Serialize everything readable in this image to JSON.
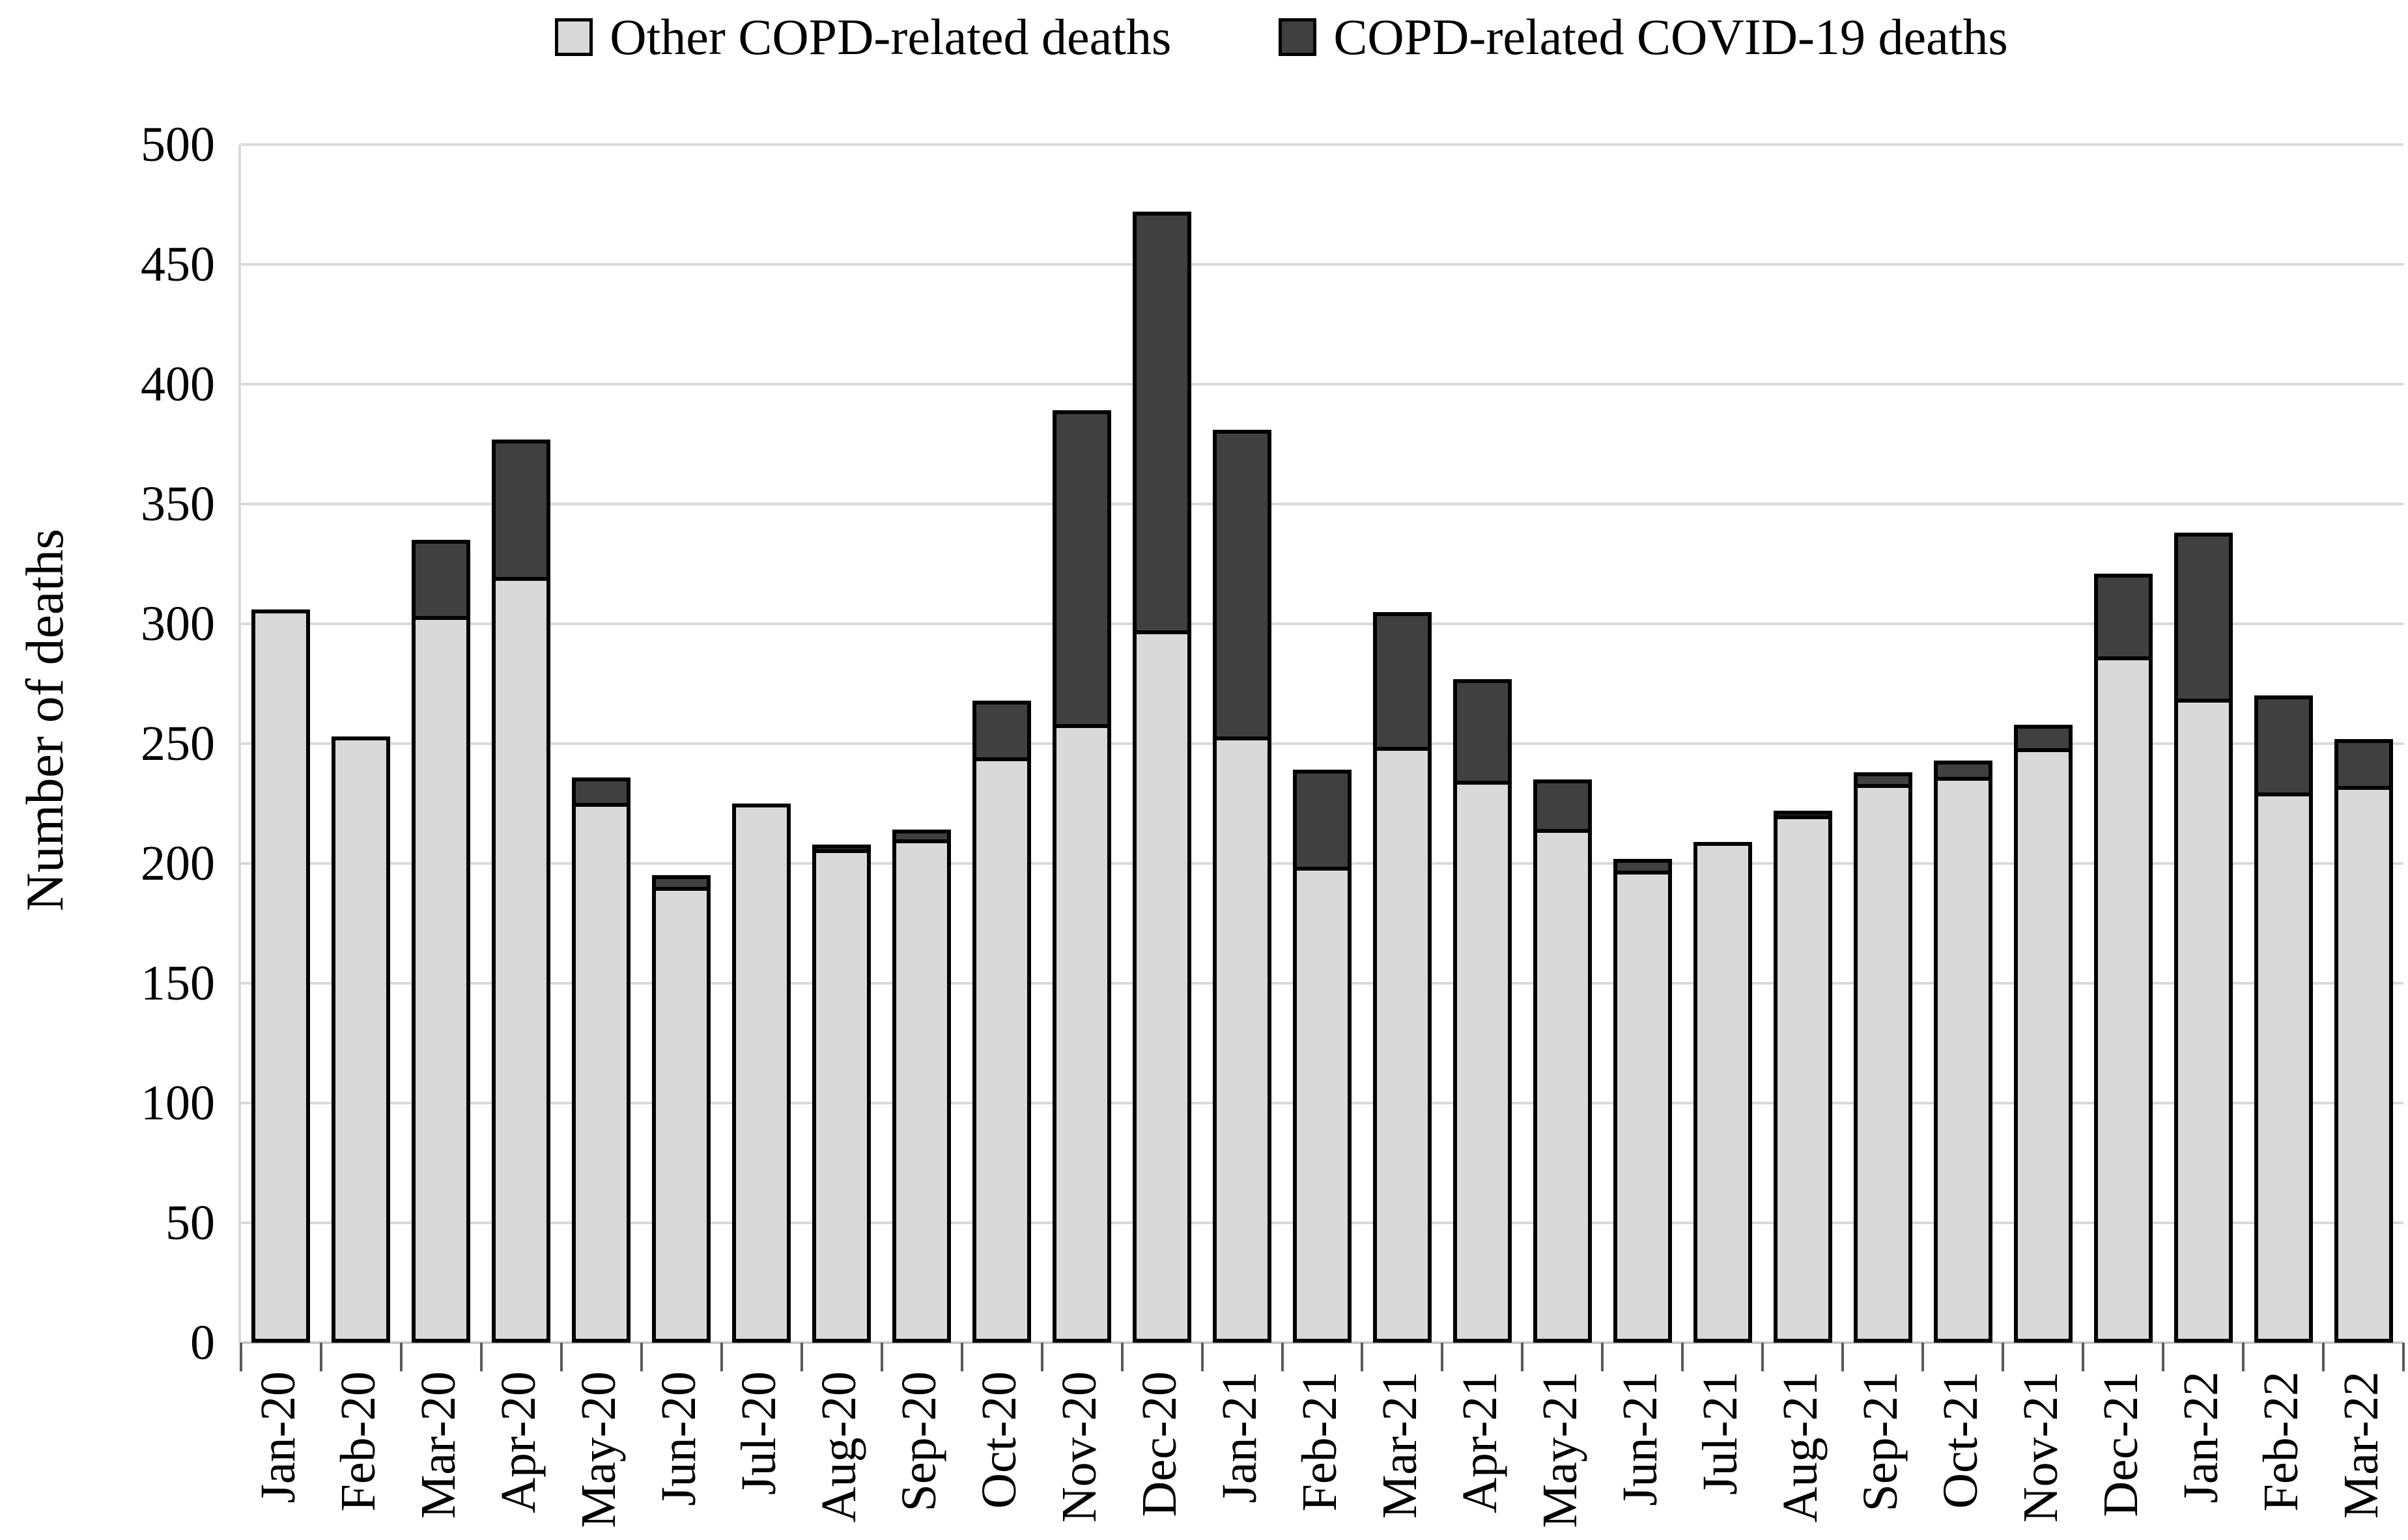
{
  "legend": [
    {
      "label": "Other COPD-related deaths",
      "color": "#d9d9d9",
      "swatch_icon": "legend-swatch-square"
    },
    {
      "label": "COPD-related COVID-19 deaths",
      "color": "#404040",
      "swatch_icon": "legend-swatch-square"
    }
  ],
  "y_axis": {
    "title": "Number of deaths",
    "min": 0,
    "max": 500,
    "step": 50,
    "tick_labels": [
      "0",
      "50",
      "100",
      "150",
      "200",
      "250",
      "300",
      "350",
      "400",
      "450",
      "500"
    ]
  },
  "colors": {
    "other_series": "#d9d9d9",
    "covid_series": "#404040",
    "bar_outline": "#000000",
    "gridline": "#d9d9d9"
  },
  "chart_data": {
    "type": "bar",
    "stacked": true,
    "title": "",
    "xlabel": "",
    "ylabel": "Number of deaths",
    "ylim": [
      0,
      500
    ],
    "grid": true,
    "legend_position": "top",
    "categories": [
      "Jan-20",
      "Feb-20",
      "Mar-20",
      "Apr-20",
      "May-20",
      "Jun-20",
      "Jul-20",
      "Aug-20",
      "Sep-20",
      "Oct-20",
      "Nov-20",
      "Dec-20",
      "Jan-21",
      "Feb-21",
      "Mar-21",
      "Apr-21",
      "May-21",
      "Jun-21",
      "Jul-21",
      "Aug-21",
      "Sep-21",
      "Oct-21",
      "Nov-21",
      "Dec-21",
      "Jan-22",
      "Feb-22",
      "Mar-22"
    ],
    "series": [
      {
        "name": "Other COPD-related deaths",
        "color": "#d9d9d9",
        "values": [
          306,
          253,
          303,
          319,
          225,
          190,
          225,
          206,
          210,
          244,
          257,
          296,
          252,
          198,
          248,
          234,
          214,
          197,
          209,
          220,
          233,
          236,
          248,
          286,
          268,
          229,
          232
        ]
      },
      {
        "name": "COPD-related COVID-19 deaths",
        "color": "#404040",
        "values": [
          0,
          0,
          32,
          58,
          11,
          5,
          0,
          2,
          4,
          24,
          132,
          176,
          129,
          41,
          57,
          43,
          21,
          5,
          0,
          2,
          5,
          7,
          10,
          35,
          70,
          41,
          20
        ]
      }
    ],
    "totals": [
      306,
      253,
      335,
      377,
      236,
      195,
      225,
      208,
      214,
      268,
      389,
      472,
      381,
      239,
      305,
      277,
      235,
      202,
      209,
      222,
      238,
      243,
      258,
      321,
      338,
      270,
      252
    ]
  }
}
